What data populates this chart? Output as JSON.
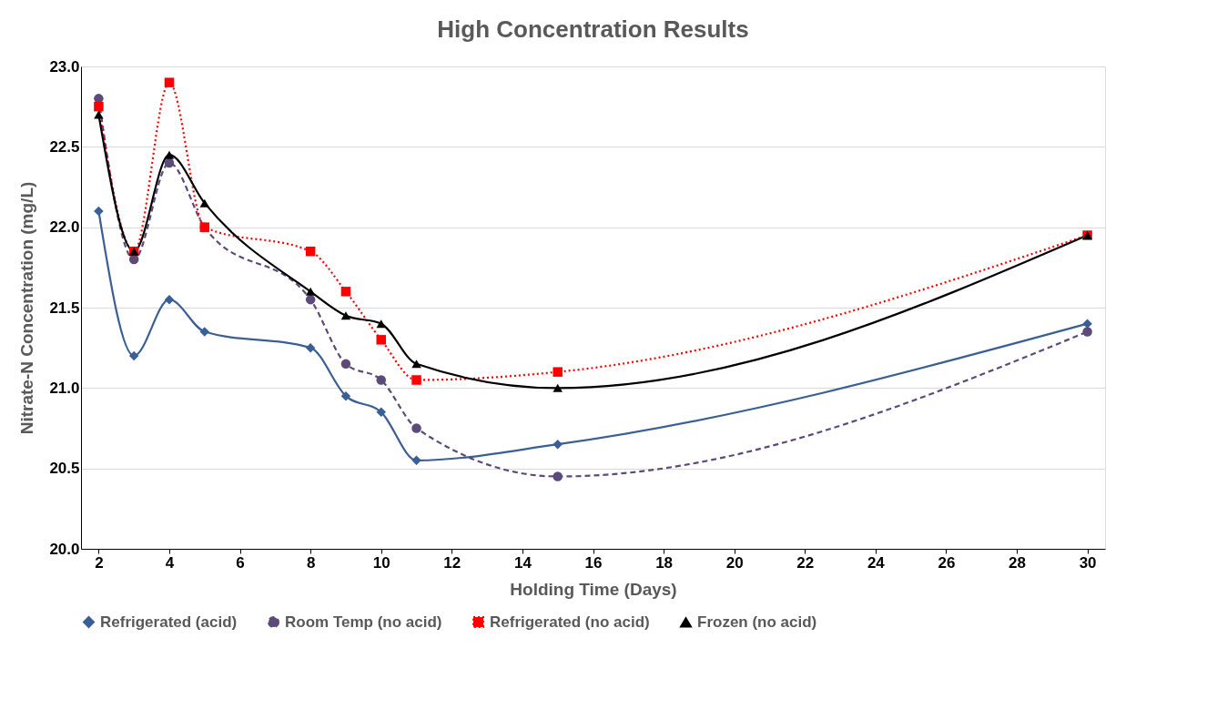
{
  "chart_data": {
    "type": "line",
    "title": "High Concentration Results",
    "xlabel": "Holding Time (Days)",
    "ylabel": "Nitrate-N Concentration (mg/L)",
    "x": [
      2,
      3,
      4,
      5,
      8,
      9,
      10,
      11,
      15,
      30
    ],
    "series": [
      {
        "name": "Refrigerated (acid)",
        "color": "#3a5f95",
        "marker": "diamond",
        "line_style": "solid",
        "values": [
          22.1,
          21.2,
          21.55,
          21.35,
          21.25,
          20.95,
          20.85,
          20.55,
          20.65,
          21.4
        ]
      },
      {
        "name": "Room Temp (no acid)",
        "color": "#5b4a7a",
        "marker": "circle",
        "line_style": "dashed",
        "values": [
          22.8,
          21.8,
          22.4,
          22.0,
          21.55,
          21.15,
          21.05,
          20.75,
          20.45,
          21.35
        ]
      },
      {
        "name": "Refrigerated (no acid)",
        "color": "#ff0000",
        "marker": "square",
        "line_style": "dotted",
        "values": [
          22.75,
          21.85,
          22.9,
          22.0,
          21.85,
          21.6,
          21.3,
          21.05,
          21.1,
          21.95
        ]
      },
      {
        "name": "Frozen (no acid)",
        "color": "#000000",
        "marker": "triangle",
        "line_style": "solid",
        "values": [
          22.7,
          21.85,
          22.45,
          22.15,
          21.6,
          21.45,
          21.4,
          21.15,
          21.0,
          21.95
        ]
      }
    ],
    "xlim": [
      1.5,
      30.5
    ],
    "xticks": [
      2,
      4,
      6,
      8,
      10,
      12,
      14,
      16,
      18,
      20,
      22,
      24,
      26,
      28,
      30
    ],
    "ylim": [
      20,
      23
    ],
    "yticks": [
      {
        "value": 20,
        "label": "20.0"
      },
      {
        "value": 20.5,
        "label": "20.5"
      },
      {
        "value": 21,
        "label": "21.0"
      },
      {
        "value": 21.5,
        "label": "21.5"
      },
      {
        "value": 22,
        "label": "22.0"
      },
      {
        "value": 22.5,
        "label": "22.5"
      },
      {
        "value": 23,
        "label": "23.0"
      }
    ],
    "grid": "y",
    "legend": "bottom"
  }
}
